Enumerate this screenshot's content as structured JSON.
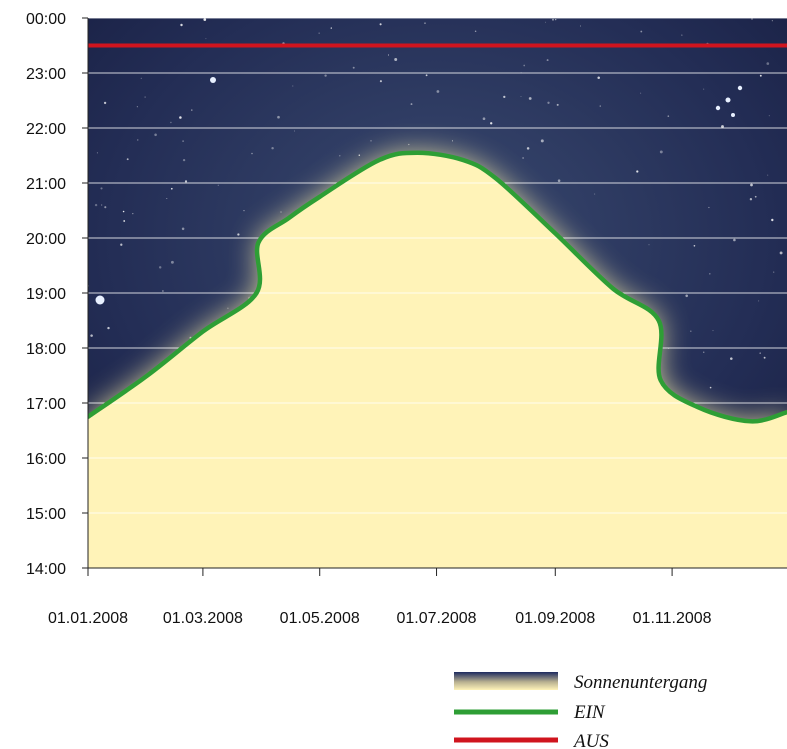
{
  "chart_data": {
    "type": "line",
    "title": "",
    "xlabel": "",
    "ylabel": "",
    "x_range": [
      "2008-01-01",
      "2008-12-31"
    ],
    "x_ticks": [
      "2008-01-01",
      "2008-03-01",
      "2008-05-01",
      "2008-07-01",
      "2008-09-01",
      "2008-11-01"
    ],
    "x_tick_labels": [
      "01.01.2008",
      "01.03.2008",
      "01.05.2008",
      "01.07.2008",
      "01.09.2008",
      "01.11.2008"
    ],
    "y_range": [
      "14:00",
      "00:00"
    ],
    "y_tick_labels": [
      "14:00",
      "15:00",
      "16:00",
      "17:00",
      "18:00",
      "19:00",
      "20:00",
      "21:00",
      "22:00",
      "23:00",
      "00:00"
    ],
    "grid": true,
    "legend_position": "bottom-right",
    "series": [
      {
        "name": "Sonnenuntergang",
        "kind": "area",
        "colors": [
          "#1d2a5e",
          "#fff3b8"
        ],
        "points": [
          {
            "x": "2008-01-01",
            "y": "16:45"
          },
          {
            "x": "2008-02-01",
            "y": "17:30"
          },
          {
            "x": "2008-03-01",
            "y": "18:18"
          },
          {
            "x": "2008-03-29",
            "y": "19:00"
          },
          {
            "x": "2008-03-30",
            "y": "19:55"
          },
          {
            "x": "2008-04-15",
            "y": "20:22"
          },
          {
            "x": "2008-05-01",
            "y": "20:45"
          },
          {
            "x": "2008-06-01",
            "y": "21:25"
          },
          {
            "x": "2008-06-21",
            "y": "21:33"
          },
          {
            "x": "2008-07-15",
            "y": "21:25"
          },
          {
            "x": "2008-08-01",
            "y": "21:05"
          },
          {
            "x": "2008-09-01",
            "y": "20:05"
          },
          {
            "x": "2008-10-01",
            "y": "19:05"
          },
          {
            "x": "2008-10-25",
            "y": "18:30"
          },
          {
            "x": "2008-10-26",
            "y": "17:25"
          },
          {
            "x": "2008-11-15",
            "y": "16:55"
          },
          {
            "x": "2008-12-12",
            "y": "16:40"
          },
          {
            "x": "2008-12-31",
            "y": "16:50"
          }
        ]
      },
      {
        "name": "EIN",
        "kind": "line",
        "color": "#2e9e35",
        "points": [
          {
            "x": "2008-01-01",
            "y": "16:45"
          },
          {
            "x": "2008-02-01",
            "y": "17:30"
          },
          {
            "x": "2008-03-01",
            "y": "18:18"
          },
          {
            "x": "2008-03-29",
            "y": "19:00"
          },
          {
            "x": "2008-03-30",
            "y": "19:55"
          },
          {
            "x": "2008-04-15",
            "y": "20:22"
          },
          {
            "x": "2008-05-01",
            "y": "20:45"
          },
          {
            "x": "2008-06-01",
            "y": "21:25"
          },
          {
            "x": "2008-06-21",
            "y": "21:33"
          },
          {
            "x": "2008-07-15",
            "y": "21:25"
          },
          {
            "x": "2008-08-01",
            "y": "21:05"
          },
          {
            "x": "2008-09-01",
            "y": "20:05"
          },
          {
            "x": "2008-10-01",
            "y": "19:05"
          },
          {
            "x": "2008-10-25",
            "y": "18:30"
          },
          {
            "x": "2008-10-26",
            "y": "17:25"
          },
          {
            "x": "2008-11-15",
            "y": "16:55"
          },
          {
            "x": "2008-12-12",
            "y": "16:40"
          },
          {
            "x": "2008-12-31",
            "y": "16:50"
          }
        ]
      },
      {
        "name": "AUS",
        "kind": "line",
        "color": "#d0141e",
        "points": [
          {
            "x": "2008-01-01",
            "y": "23:30"
          },
          {
            "x": "2008-12-31",
            "y": "23:30"
          }
        ]
      }
    ]
  },
  "colors": {
    "night_sky": "#1a2250",
    "sunset_glow": "#fff3b8",
    "gridline": "#ffffff"
  }
}
